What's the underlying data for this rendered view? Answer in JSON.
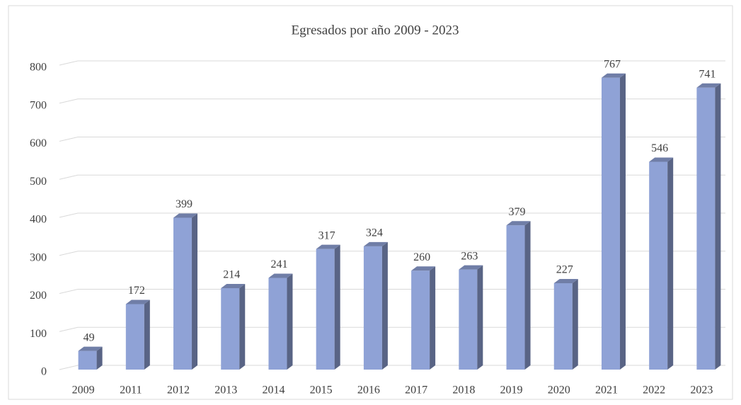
{
  "chart_data": {
    "type": "bar3d",
    "title": "Egresados por año  2009 - 2023",
    "categories": [
      "2009",
      "2011",
      "2012",
      "2013",
      "2014",
      "2015",
      "2016",
      "2017",
      "2018",
      "2019",
      "2020",
      "2021",
      "2022",
      "2023"
    ],
    "values": [
      49,
      172,
      399,
      214,
      241,
      317,
      324,
      260,
      263,
      379,
      227,
      767,
      546,
      741
    ],
    "color": "#8fa2d6",
    "ylim": [
      0,
      800
    ],
    "yticks": [
      0,
      100,
      200,
      300,
      400,
      500,
      600,
      700,
      800
    ],
    "grid": true
  }
}
